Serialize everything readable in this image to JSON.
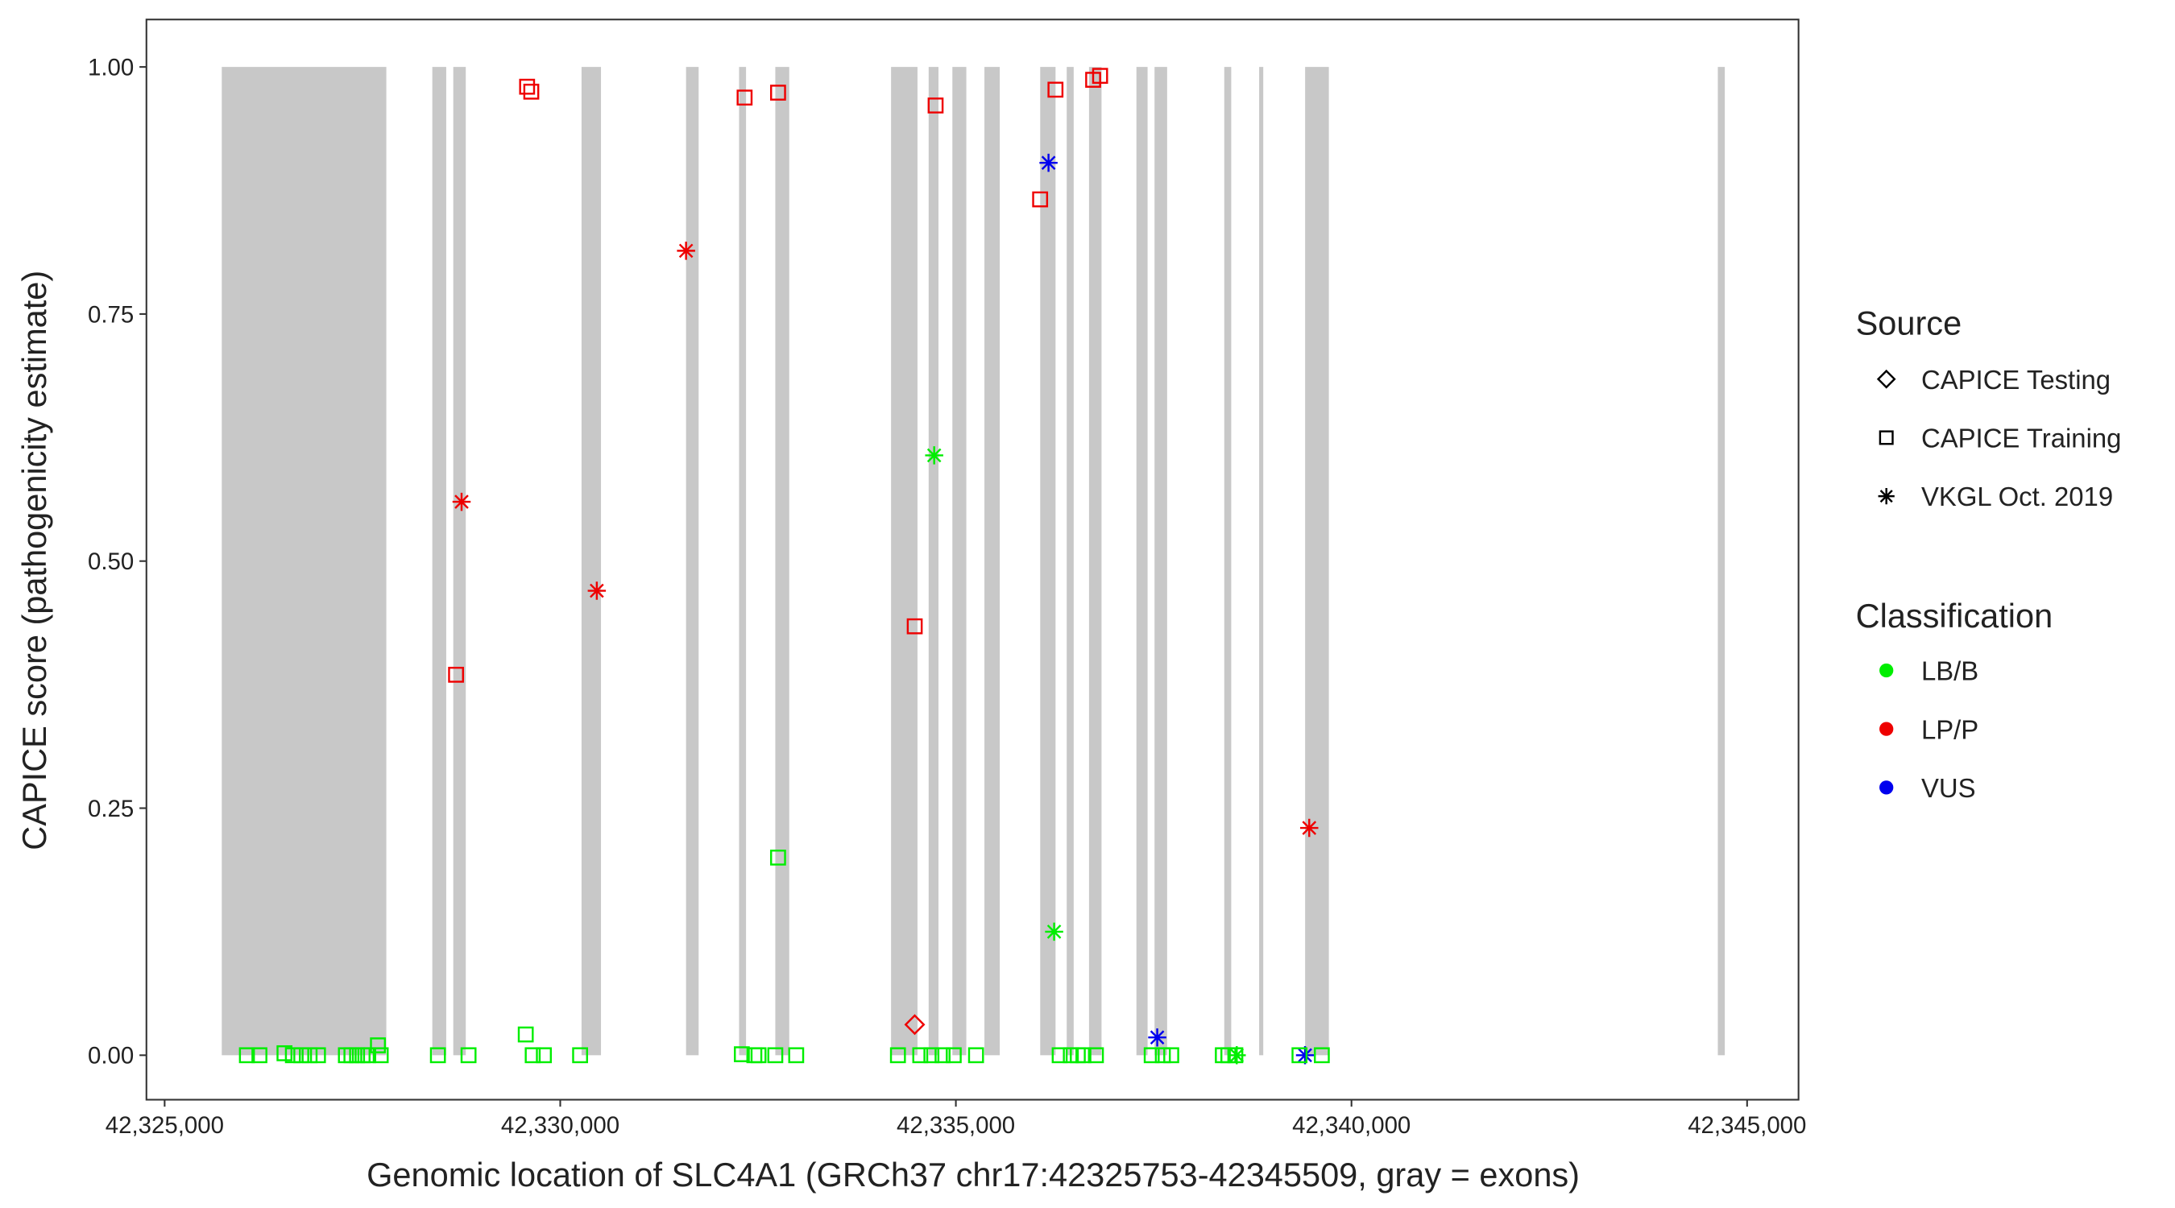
{
  "chart_data": {
    "type": "scatter",
    "x_label": "Genomic location of SLC4A1 (GRCh37 chr17:42325753-42345509, gray = exons)",
    "y_label": "CAPICE score (pathogenicity estimate)",
    "xlim": [
      42324770,
      42345650
    ],
    "ylim": [
      -0.045,
      1.048
    ],
    "xticks": [
      {
        "value": 42325000,
        "label": "42,325,000"
      },
      {
        "value": 42330000,
        "label": "42,330,000"
      },
      {
        "value": 42335000,
        "label": "42,335,000"
      },
      {
        "value": 42340000,
        "label": "42,340,000"
      },
      {
        "value": 42345000,
        "label": "42,345,000"
      }
    ],
    "yticks": [
      {
        "value": 0,
        "label": "0.00"
      },
      {
        "value": 0.25,
        "label": "0.25"
      },
      {
        "value": 0.5,
        "label": "0.50"
      },
      {
        "value": 0.75,
        "label": "0.75"
      },
      {
        "value": 1,
        "label": "1.00"
      }
    ],
    "exon_color": "#c8c8c8",
    "exons": [
      [
        42325722,
        42327802
      ],
      [
        42328383,
        42328559
      ],
      [
        42328648,
        42328806
      ],
      [
        42330269,
        42330515
      ],
      [
        42331590,
        42331749
      ],
      [
        42332260,
        42332348
      ],
      [
        42332718,
        42332894
      ],
      [
        42334181,
        42334515
      ],
      [
        42334656,
        42334780
      ],
      [
        42334956,
        42335132
      ],
      [
        42335361,
        42335555
      ],
      [
        42336066,
        42336260
      ],
      [
        42336401,
        42336489
      ],
      [
        42336683,
        42336841
      ],
      [
        42337282,
        42337423
      ],
      [
        42337511,
        42337670
      ],
      [
        42338392,
        42338480
      ],
      [
        42338833,
        42338885
      ],
      [
        42339414,
        42339714
      ],
      [
        42344630,
        42344718
      ]
    ],
    "legend": {
      "shape_title": "Source",
      "shape_items": [
        {
          "label": "CAPICE Testing",
          "shape": "diamond"
        },
        {
          "label": "CAPICE Training",
          "shape": "square"
        },
        {
          "label": "VKGL Oct. 2019",
          "shape": "star"
        }
      ],
      "color_title": "Classification",
      "color_items": [
        {
          "label": "LB/B",
          "color": "#00ee00"
        },
        {
          "label": "LP/P",
          "color": "#ee0000"
        },
        {
          "label": "VUS",
          "color": "#0000ee"
        }
      ]
    },
    "series": [
      {
        "shape": "square",
        "color": "#ee0000",
        "x": [
          42329581,
          42329634,
          42332330,
          42332753,
          42334744,
          42336259,
          42336735,
          42336823,
          42336065,
          42334480,
          42328683
        ],
        "y": [
          0.98,
          0.975,
          0.969,
          0.974,
          0.961,
          0.977,
          0.987,
          0.991,
          0.866,
          0.434,
          0.385
        ]
      },
      {
        "shape": "star",
        "color": "#ee0000",
        "x": [
          42328753,
          42330462,
          42331590,
          42339466
        ],
        "y": [
          0.56,
          0.47,
          0.814,
          0.23
        ]
      },
      {
        "shape": "diamond",
        "color": "#ee0000",
        "x": [
          42334480
        ],
        "y": [
          0.031
        ]
      },
      {
        "shape": "star",
        "color": "#0000ee",
        "x": [
          42336171,
          42337545,
          42339413
        ],
        "y": [
          0.903,
          0.018,
          0
        ]
      },
      {
        "shape": "star",
        "color": "#00ee00",
        "x": [
          42334726,
          42336242,
          42338550
        ],
        "y": [
          0.607,
          0.125,
          0
        ]
      },
      {
        "shape": "square",
        "color": "#00ee00",
        "x": [
          42332753,
          42327696,
          42329564,
          42326040,
          42326198,
          42326515,
          42326621,
          42326727,
          42326832,
          42326938,
          42327291,
          42327361,
          42327432,
          42327502,
          42327573,
          42327731,
          42328454,
          42328841,
          42329652,
          42329793,
          42330251,
          42332295,
          42332453,
          42332506,
          42332718,
          42332982,
          42334268,
          42334550,
          42334691,
          42334832,
          42334973,
          42335255,
          42336312,
          42336453,
          42336541,
          42336612,
          42336770,
          42337475,
          42337616,
          42337722,
          42338374,
          42338444,
          42338532,
          42339343,
          42339625
        ],
        "y": [
          0.2,
          0.01,
          0.021,
          0,
          0,
          0.002,
          0,
          0,
          0,
          0,
          0,
          0,
          0,
          0,
          0,
          0,
          0,
          0,
          0,
          0,
          0,
          0.001,
          0,
          0,
          0,
          0,
          0,
          0,
          0,
          0,
          0,
          0,
          0,
          0,
          0,
          0,
          0,
          0,
          0,
          0,
          0,
          0,
          0,
          0,
          0
        ]
      }
    ]
  }
}
